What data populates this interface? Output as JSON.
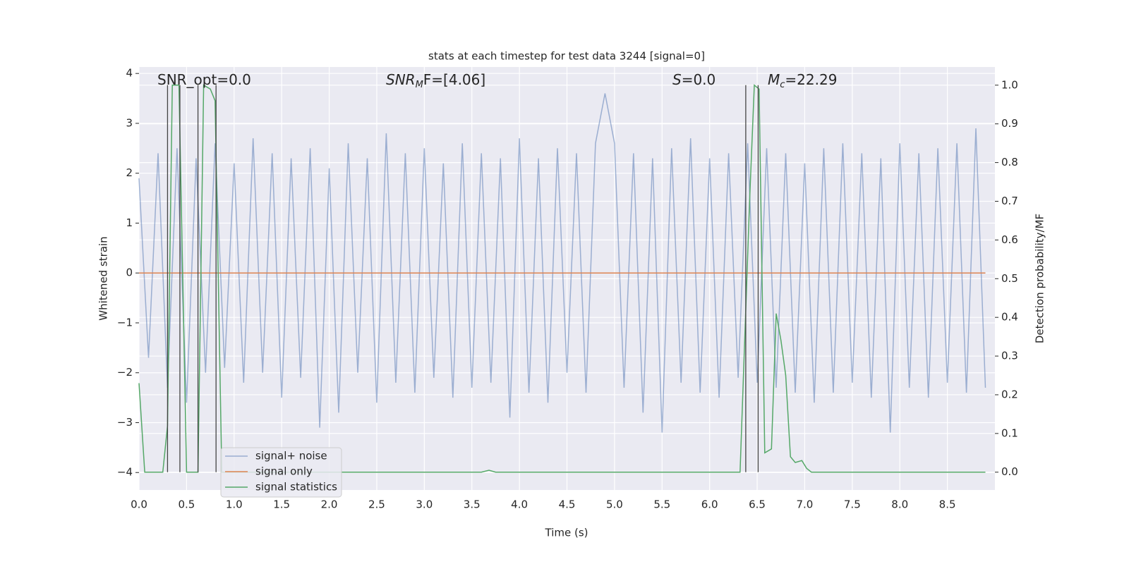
{
  "chart_data": {
    "type": "line",
    "title": "stats at each timestep for test data 3244 [signal=0]",
    "xlabel": "Time (s)",
    "ylabel": "Whitened strain",
    "y2label": "Detection probability/MF",
    "xlim": [
      0,
      9.0
    ],
    "ylim": [
      -4.35,
      4.13
    ],
    "y2lim": [
      -0.046,
      1.047
    ],
    "xticks": [
      {
        "value": 0,
        "label": "0.0"
      },
      0.5,
      {
        "value": 1,
        "label": "1.0"
      },
      1.5,
      {
        "value": 2,
        "label": "2.0"
      },
      2.5,
      {
        "value": 3,
        "label": "3.0"
      },
      3.5,
      {
        "value": 4,
        "label": "4.0"
      },
      4.5,
      {
        "value": 5,
        "label": "5.0"
      },
      5.5,
      {
        "value": 6,
        "label": "6.0"
      },
      6.5,
      {
        "value": 7,
        "label": "7.0"
      },
      7.5,
      {
        "value": 8,
        "label": "8.0"
      },
      8.5
    ],
    "yticks": [
      {
        "value": -4,
        "label": "−4"
      },
      {
        "value": -3,
        "label": "−3"
      },
      {
        "value": -2,
        "label": "−2"
      },
      {
        "value": -1,
        "label": "−1"
      },
      0,
      1,
      2,
      3,
      4
    ],
    "y2ticks": [
      {
        "value": 0,
        "label": "0.0"
      },
      0.1,
      0.2,
      0.3,
      0.4,
      0.5,
      0.6,
      0.7,
      0.8,
      0.9,
      {
        "value": 1,
        "label": "1.0"
      }
    ],
    "grid": true,
    "legend": "lower left",
    "series": [
      {
        "name": "signal+ noise",
        "color": "#4c72b0",
        "x": [
          0,
          0.1,
          0.2,
          0.3,
          0.4,
          0.5,
          0.6,
          0.7,
          0.8,
          0.9,
          1,
          1.1,
          1.2,
          1.3,
          1.4,
          1.5,
          1.6,
          1.7,
          1.8,
          1.9,
          2,
          2.1,
          2.2,
          2.3,
          2.4,
          2.5,
          2.6,
          2.7,
          2.8,
          2.9,
          3,
          3.1,
          3.2,
          3.3,
          3.4,
          3.5,
          3.6,
          3.7,
          3.8,
          3.9,
          4,
          4.1,
          4.2,
          4.3,
          4.4,
          4.5,
          4.6,
          4.7,
          4.8,
          4.9,
          5,
          5.1,
          5.2,
          5.3,
          5.4,
          5.5,
          5.6,
          5.7,
          5.8,
          5.9,
          6,
          6.1,
          6.2,
          6.3,
          6.4,
          6.5,
          6.6,
          6.7,
          6.8,
          6.9,
          7,
          7.1,
          7.2,
          7.3,
          7.4,
          7.5,
          7.6,
          7.7,
          7.8,
          7.9,
          8,
          8.1,
          8.2,
          8.3,
          8.4,
          8.5,
          8.6,
          8.7,
          8.8,
          8.9
        ],
        "values": [
          1.9,
          -1.7,
          2.4,
          -2.3,
          2.5,
          -2.6,
          2.3,
          -2.0,
          2.6,
          -1.9,
          2.2,
          -2.2,
          2.7,
          -2.0,
          2.4,
          -2.5,
          2.3,
          -2.1,
          2.5,
          -3.1,
          2.1,
          -2.8,
          2.6,
          -2.0,
          2.3,
          -2.6,
          2.8,
          -2.2,
          2.4,
          -2.4,
          2.5,
          -2.1,
          2.2,
          -2.5,
          2.6,
          -2.3,
          2.4,
          -2.2,
          2.3,
          -2.9,
          2.7,
          -2.4,
          2.3,
          -2.6,
          2.5,
          -2.0,
          2.4,
          -2.4,
          2.6,
          3.6,
          2.6,
          -2.3,
          2.4,
          -2.8,
          2.3,
          -3.2,
          2.5,
          -2.2,
          2.7,
          -2.4,
          2.3,
          -2.5,
          2.4,
          -2.1,
          2.6,
          -2.2,
          2.5,
          -2.3,
          2.4,
          -2.4,
          2.2,
          -2.6,
          2.5,
          -2.4,
          2.6,
          -2.2,
          2.4,
          -2.5,
          2.3,
          -3.2,
          2.6,
          -2.3,
          2.4,
          -2.5,
          2.5,
          -2.2,
          2.6,
          -2.4,
          2.9,
          -2.3
        ]
      },
      {
        "name": "signal only",
        "color": "#dd8452",
        "x": [
          0,
          8.9
        ],
        "values": [
          0,
          0
        ]
      },
      {
        "name": "signal statistics",
        "color": "#55a868",
        "axis": "y2",
        "x": [
          0,
          0.06,
          0.25,
          0.3,
          0.35,
          0.42,
          0.5,
          0.62,
          0.68,
          0.75,
          0.8,
          0.87,
          3.6,
          3.68,
          3.75,
          6.32,
          6.42,
          6.47,
          6.52,
          6.58,
          6.65,
          6.7,
          6.75,
          6.8,
          6.85,
          6.9,
          6.97,
          7.02,
          7.07,
          8.9
        ],
        "values": [
          0.23,
          0,
          0,
          0.12,
          1,
          1,
          0,
          0,
          1,
          0.99,
          0.96,
          0,
          0,
          0.005,
          0,
          0,
          0.7,
          1,
          0.99,
          0.05,
          0.06,
          0.41,
          0.34,
          0.25,
          0.04,
          0.025,
          0.03,
          0.01,
          0,
          0
        ]
      }
    ],
    "vlines": [
      0.3,
      0.43,
      0.62,
      0.81,
      6.38,
      6.51
    ],
    "annotations": [
      {
        "text": "SNR_opt=0.0"
      },
      {
        "text": "SNR",
        "sub": "M",
        "rest": "F=[4.06]"
      },
      {
        "text": "S",
        "rest": "=0.0"
      },
      {
        "text": "M",
        "sub": "c",
        "rest": "=22.29"
      }
    ]
  }
}
